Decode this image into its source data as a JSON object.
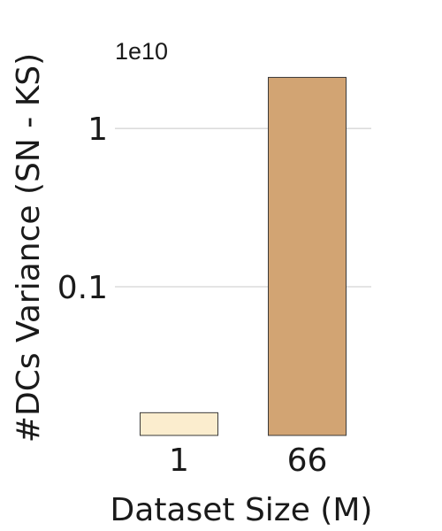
{
  "chart_data": {
    "type": "bar",
    "yscale": "log",
    "y_offset_label": "1e10",
    "xlabel": "Dataset Size (M)",
    "ylabel": "#DCs Variance (SN - KS)",
    "categories": [
      "1",
      "66"
    ],
    "values": [
      0.016,
      2.1
    ],
    "bar_colors": [
      "#fbedce",
      "#d2a473"
    ],
    "ylim": [
      0.0115,
      3.4
    ],
    "y_ticks": [
      0.1,
      1
    ],
    "y_tick_labels": [
      "0.1",
      "1"
    ],
    "grid": "y-major"
  }
}
